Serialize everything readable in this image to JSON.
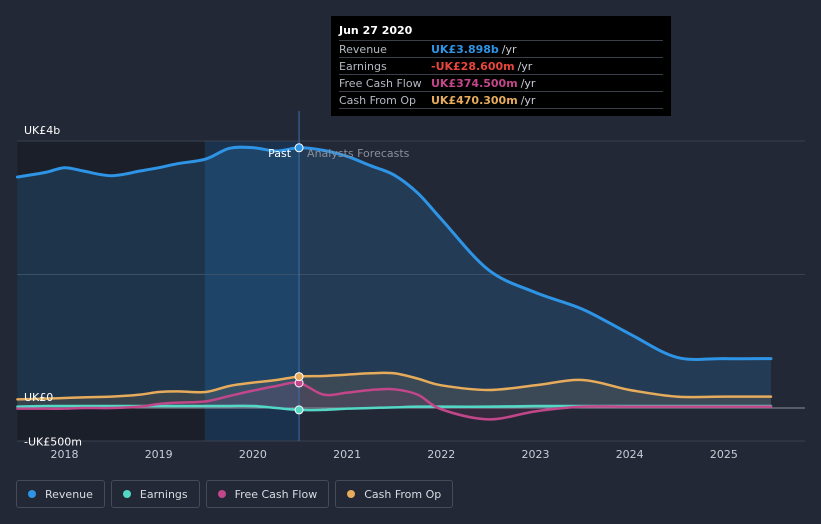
{
  "chart_data": {
    "type": "area",
    "title": "",
    "x": [
      2017.5,
      2017.8,
      2018.0,
      2018.2,
      2018.5,
      2018.8,
      2019.0,
      2019.2,
      2019.5,
      2019.75,
      2020.0,
      2020.25,
      2020.49,
      2020.75,
      2021.0,
      2021.25,
      2021.5,
      2021.75,
      2022.0,
      2022.5,
      2023.0,
      2023.5,
      2024.0,
      2024.5,
      2025.0,
      2025.5
    ],
    "series": [
      {
        "name": "Revenue",
        "color": "#2e94e6",
        "values": [
          3.46,
          3.53,
          3.6,
          3.55,
          3.48,
          3.55,
          3.6,
          3.66,
          3.73,
          3.89,
          3.9,
          3.85,
          3.898,
          3.86,
          3.77,
          3.63,
          3.49,
          3.22,
          2.83,
          2.07,
          1.73,
          1.48,
          1.11,
          0.76,
          0.74,
          0.74
        ]
      },
      {
        "name": "Earnings",
        "color": "#53d8c6",
        "values": [
          0.02,
          0.03,
          0.03,
          0.03,
          0.03,
          0.03,
          0.03,
          0.03,
          0.03,
          0.03,
          0.03,
          0.0,
          -0.0286,
          -0.028,
          -0.01,
          0.0,
          0.01,
          0.02,
          0.02,
          0.02,
          0.03,
          0.03,
          0.03,
          0.03,
          0.03,
          0.03
        ]
      },
      {
        "name": "Free Cash Flow",
        "color": "#c2478a",
        "values": [
          -0.01,
          -0.01,
          -0.01,
          0.0,
          0.0,
          0.02,
          0.06,
          0.08,
          0.1,
          0.18,
          0.26,
          0.33,
          0.3745,
          0.2,
          0.23,
          0.27,
          0.28,
          0.2,
          -0.02,
          -0.17,
          -0.05,
          0.02,
          0.02,
          0.02,
          0.02,
          0.02
        ]
      },
      {
        "name": "Cash From Op",
        "color": "#e6ac5c",
        "values": [
          0.13,
          0.14,
          0.15,
          0.16,
          0.17,
          0.2,
          0.24,
          0.25,
          0.24,
          0.33,
          0.38,
          0.42,
          0.4703,
          0.48,
          0.5,
          0.52,
          0.52,
          0.44,
          0.34,
          0.27,
          0.34,
          0.42,
          0.27,
          0.17,
          0.17,
          0.17
        ]
      }
    ],
    "x_ticks": [
      "2018",
      "2019",
      "2020",
      "2021",
      "2022",
      "2023",
      "2024",
      "2025"
    ],
    "y_ticks": [
      "UK£4b",
      "UK£0",
      "-UK£500m"
    ],
    "y_tick_values": [
      4,
      0,
      -0.5
    ],
    "ylim": [
      -0.5,
      4
    ],
    "xlim": [
      2017.5,
      2025.5
    ],
    "xlabel": "",
    "ylabel": "",
    "past_label": "Past",
    "forecast_label": "Analysts Forecasts",
    "divider_x": 2020.49,
    "highlight_from": 2019.49,
    "shaded_from": 2019.49,
    "grid": true
  },
  "tooltip": {
    "date": "Jun 27 2020",
    "rows": [
      {
        "label": "Revenue",
        "value": "UK£3.898b",
        "unit": "/yr",
        "color": "#2e94e6"
      },
      {
        "label": "Earnings",
        "value": "-UK£28.600m",
        "unit": "/yr",
        "color": "#e8453c"
      },
      {
        "label": "Free Cash Flow",
        "value": "UK£374.500m",
        "unit": "/yr",
        "color": "#c2478a"
      },
      {
        "label": "Cash From Op",
        "value": "UK£470.300m",
        "unit": "/yr",
        "color": "#e6ac5c"
      }
    ]
  },
  "legend": [
    {
      "label": "Revenue",
      "color": "#2e94e6"
    },
    {
      "label": "Earnings",
      "color": "#53d8c6"
    },
    {
      "label": "Free Cash Flow",
      "color": "#c2478a"
    },
    {
      "label": "Cash From Op",
      "color": "#e6ac5c"
    }
  ]
}
